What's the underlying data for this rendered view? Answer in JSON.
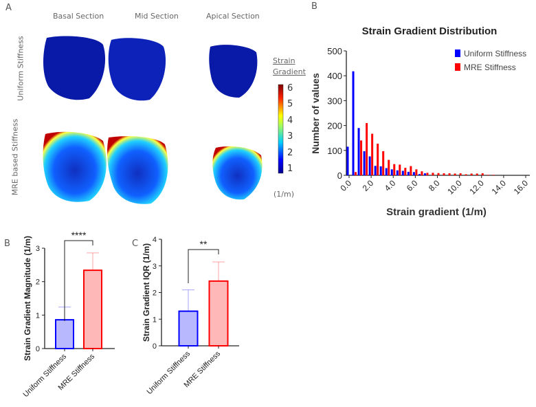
{
  "panels": {
    "a": "A",
    "b_top": "B",
    "b": "B",
    "c": "C"
  },
  "maps": {
    "columns": [
      "Basal Section",
      "Mid Section",
      "Apical Section"
    ],
    "rows": [
      "Uniform Stiffness",
      "MRE based Stiffness"
    ],
    "colorbar": {
      "title_1": "Strain",
      "title_2": "Gradient",
      "ticks": [
        "6",
        "5",
        "4",
        "3",
        "2",
        "1"
      ],
      "unit": "(1/m)",
      "range": [
        0.5,
        6
      ]
    }
  },
  "chart_data": [
    {
      "type": "bar",
      "title": "Strain Gradient Distribution",
      "xlabel": "Strain gradient (1/m)",
      "ylabel": "Number of values",
      "xlim": [
        0,
        16
      ],
      "ylim": [
        0,
        500
      ],
      "xticks": [
        "0.0",
        "2.0",
        "4.0",
        "6.0",
        "8.0",
        "10.0",
        "12.0",
        "14.0",
        "16.0"
      ],
      "yticks": [
        "0",
        "100",
        "200",
        "300",
        "400",
        "500"
      ],
      "legend_position": "top-right",
      "bin_width": 0.5,
      "bins": [
        0,
        0.5,
        1,
        1.5,
        2,
        2.5,
        3,
        3.5,
        4,
        4.5,
        5,
        5.5,
        6,
        6.5,
        7,
        7.5,
        8,
        8.5,
        9,
        9.5,
        10,
        10.5,
        11,
        11.5,
        12,
        12.5,
        13
      ],
      "series": [
        {
          "name": "Uniform Stiffness",
          "color": "#0000ff",
          "values": [
            115,
            418,
            190,
            97,
            76,
            38,
            36,
            29,
            24,
            20,
            18,
            14,
            13,
            5,
            8,
            0,
            0,
            0,
            0,
            0,
            0,
            0,
            0,
            0,
            0,
            0,
            0
          ]
        },
        {
          "name": "MRE Stiffness",
          "color": "#ff0000",
          "values": [
            0,
            13,
            140,
            210,
            167,
            127,
            97,
            62,
            45,
            43,
            30,
            37,
            24,
            16,
            10,
            10,
            9,
            8,
            8,
            7,
            8,
            4,
            7,
            7,
            8,
            2,
            2
          ]
        }
      ]
    },
    {
      "type": "bar",
      "panel": "B",
      "ylabel": "Strain Gradient Magnitude  (1/m)",
      "ylim": [
        0,
        3
      ],
      "yticks": [
        "0",
        "1",
        "2",
        "3"
      ],
      "categories": [
        "Uniform Stiffness",
        "MRE Stiffness"
      ],
      "values": [
        0.86,
        2.34
      ],
      "errors": [
        0.38,
        0.52
      ],
      "colors": [
        "#0000ff",
        "#ff0000"
      ],
      "fills": [
        "#b8b8ff",
        "#ffb8b8"
      ],
      "significance": "****"
    },
    {
      "type": "bar",
      "panel": "C",
      "ylabel": "Strain Gradient IQR (1/m)",
      "ylim": [
        0,
        4
      ],
      "yticks": [
        "0",
        "1",
        "2",
        "3",
        "4"
      ],
      "categories": [
        "Uniform Stiffness",
        "MRE Stiffness"
      ],
      "values": [
        1.3,
        2.43
      ],
      "errors": [
        0.8,
        0.72
      ],
      "colors": [
        "#0000ff",
        "#ff0000"
      ],
      "fills": [
        "#b8b8ff",
        "#ffb8b8"
      ],
      "significance": "**"
    }
  ]
}
